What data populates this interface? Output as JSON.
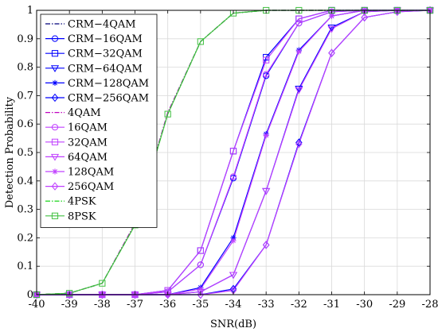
{
  "chart_data": {
    "type": "line",
    "xlabel": "SNR(dB)",
    "ylabel": "Detection Probability",
    "xlim": [
      -40,
      -28
    ],
    "ylim": [
      0,
      1
    ],
    "xticks": [
      -40,
      -39,
      -38,
      -37,
      -36,
      -35,
      -34,
      -33,
      -32,
      -31,
      -30,
      -29,
      -28
    ],
    "yticks": [
      0,
      0.1,
      0.2,
      0.3,
      0.4,
      0.5,
      0.6,
      0.7,
      0.8,
      0.9,
      1
    ],
    "ytick_labels": [
      "0",
      "0.1",
      "0.2",
      "0.3",
      "0.4",
      "0.5",
      "0.6",
      "0.7",
      "0.8",
      "0.9",
      "1"
    ],
    "grid": true,
    "legend_position": "top-left",
    "x": [
      -40,
      -39,
      -38,
      -37,
      -36,
      -35,
      -34,
      -33,
      -32,
      -31,
      -30,
      -29,
      -28
    ],
    "series": [
      {
        "name": "CRM−4QAM",
        "color": "#00007a",
        "dash": "dashdot",
        "marker": "none",
        "values": [
          0,
          0.005,
          0.04,
          0.25,
          0.64,
          0.89,
          0.99,
          1,
          1,
          1,
          1,
          1,
          1
        ]
      },
      {
        "name": "CRM−16QAM",
        "color": "#0000ff",
        "dash": "solid",
        "marker": "circle",
        "values": [
          0,
          0,
          0,
          0,
          0.01,
          0.105,
          0.41,
          0.77,
          0.955,
          0.995,
          1,
          1,
          1
        ]
      },
      {
        "name": "CRM−32QAM",
        "color": "#0000ff",
        "dash": "solid",
        "marker": "square",
        "values": [
          0,
          0,
          0,
          0,
          0.015,
          0.155,
          0.505,
          0.835,
          0.97,
          1,
          1,
          1,
          1
        ]
      },
      {
        "name": "CRM−64QAM",
        "color": "#0000ff",
        "dash": "solid",
        "marker": "triangle-down",
        "values": [
          0,
          0,
          0,
          0,
          0,
          0.01,
          0.07,
          0.365,
          0.725,
          0.94,
          0.995,
          1,
          1
        ]
      },
      {
        "name": "CRM−128QAM",
        "color": "#0000ff",
        "dash": "solid",
        "marker": "star",
        "values": [
          0,
          0,
          0,
          0,
          0,
          0.025,
          0.2,
          0.565,
          0.86,
          0.98,
          1,
          1,
          1
        ]
      },
      {
        "name": "CRM−256QAM",
        "color": "#0000ff",
        "dash": "solid",
        "marker": "diamond",
        "values": [
          0,
          0,
          0,
          0,
          0,
          0,
          0.02,
          0.175,
          0.535,
          0.85,
          0.975,
          0.995,
          1
        ]
      },
      {
        "name": "4QAM",
        "color": "#c000c0",
        "dash": "dashdot",
        "marker": "none",
        "values": [
          0,
          0.005,
          0.04,
          0.25,
          0.64,
          0.89,
          0.99,
          1,
          1,
          1,
          1,
          1,
          1
        ]
      },
      {
        "name": "16QAM",
        "color": "#c040ff",
        "dash": "solid",
        "marker": "circle",
        "values": [
          0,
          0,
          0,
          0,
          0.01,
          0.105,
          0.415,
          0.775,
          0.955,
          0.995,
          1,
          1,
          1
        ]
      },
      {
        "name": "32QAM",
        "color": "#c040ff",
        "dash": "solid",
        "marker": "square",
        "values": [
          0,
          0,
          0,
          0,
          0.015,
          0.155,
          0.505,
          0.825,
          0.97,
          1,
          1,
          1,
          1
        ]
      },
      {
        "name": "64QAM",
        "color": "#c040ff",
        "dash": "solid",
        "marker": "triangle-down",
        "values": [
          0,
          0,
          0,
          0,
          0,
          0.01,
          0.07,
          0.365,
          0.72,
          0.935,
          0.995,
          1,
          1
        ]
      },
      {
        "name": "128QAM",
        "color": "#c040ff",
        "dash": "solid",
        "marker": "star",
        "values": [
          0,
          0,
          0,
          0,
          0,
          0.02,
          0.19,
          0.56,
          0.855,
          0.98,
          1,
          1,
          1
        ]
      },
      {
        "name": "256QAM",
        "color": "#c040ff",
        "dash": "solid",
        "marker": "diamond",
        "values": [
          0,
          0,
          0,
          0,
          0,
          0,
          0.015,
          0.175,
          0.53,
          0.85,
          0.975,
          0.995,
          1
        ]
      },
      {
        "name": "4PSK",
        "color": "#00d000",
        "dash": "dashdot",
        "marker": "none",
        "values": [
          0,
          0.005,
          0.04,
          0.245,
          0.635,
          0.89,
          0.99,
          1,
          1,
          1,
          1,
          1,
          1
        ]
      },
      {
        "name": "8PSK",
        "color": "#40c040",
        "dash": "solid",
        "marker": "square",
        "values": [
          0,
          0.005,
          0.04,
          0.245,
          0.635,
          0.89,
          0.99,
          1,
          1,
          1,
          1,
          1,
          1
        ]
      }
    ]
  }
}
